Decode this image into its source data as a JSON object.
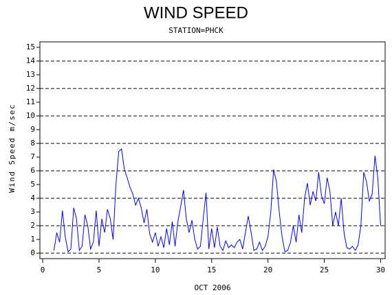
{
  "chart_data": {
    "type": "line",
    "title": "WIND SPEED",
    "subtitle": "STATION=PHCK",
    "x_label": "OCT 2006",
    "y_label": "Wind Speed m/sec",
    "xlim": [
      -0.25,
      30.4
    ],
    "ylim": [
      -0.4,
      15.4
    ],
    "xticks": [
      0,
      5,
      10,
      15,
      20,
      25,
      30
    ],
    "yticks": [
      0,
      1,
      2,
      3,
      4,
      5,
      6,
      7,
      8,
      9,
      10,
      11,
      12,
      13,
      14,
      15
    ],
    "grid_lines": [
      0,
      2,
      4,
      6,
      8,
      10,
      12,
      14
    ],
    "series": [
      {
        "name": "Wind Speed",
        "color": "#0000ff",
        "x": [
          1.0,
          1.25,
          1.5,
          1.75,
          2.0,
          2.25,
          2.5,
          2.75,
          3.0,
          3.25,
          3.5,
          3.75,
          4.0,
          4.25,
          4.5,
          4.75,
          5.0,
          5.25,
          5.5,
          5.75,
          6.0,
          6.25,
          6.5,
          6.75,
          7.0,
          7.25,
          7.5,
          7.75,
          8.0,
          8.25,
          8.5,
          8.75,
          9.0,
          9.25,
          9.5,
          9.75,
          10.0,
          10.25,
          10.5,
          10.75,
          11.0,
          11.25,
          11.5,
          11.75,
          12.0,
          12.25,
          12.5,
          12.75,
          13.0,
          13.25,
          13.5,
          13.75,
          14.0,
          14.25,
          14.5,
          14.75,
          15.0,
          15.25,
          15.5,
          15.75,
          16.0,
          16.25,
          16.5,
          16.75,
          17.0,
          17.25,
          17.5,
          17.75,
          18.0,
          18.25,
          18.5,
          18.75,
          19.0,
          19.25,
          19.5,
          19.75,
          20.0,
          20.25,
          20.5,
          20.75,
          21.0,
          21.25,
          21.5,
          21.75,
          22.0,
          22.25,
          22.5,
          22.75,
          23.0,
          23.25,
          23.5,
          23.75,
          24.0,
          24.25,
          24.5,
          24.75,
          25.0,
          25.25,
          25.5,
          25.75,
          26.0,
          26.25,
          26.5,
          26.75,
          27.0,
          27.25,
          27.5,
          27.75,
          28.0,
          28.25,
          28.5,
          28.75,
          29.0,
          29.25,
          29.5,
          29.75,
          30.0
        ],
        "values": [
          0.2,
          1.5,
          0.8,
          3.1,
          1.2,
          0.1,
          0.3,
          3.3,
          2.5,
          0.2,
          0.5,
          2.8,
          2.0,
          0.3,
          0.8,
          3.1,
          0.5,
          2.5,
          1.5,
          3.2,
          2.5,
          1.0,
          5.0,
          7.4,
          7.6,
          6.1,
          5.5,
          4.8,
          4.3,
          3.5,
          4.0,
          3.3,
          2.2,
          3.2,
          1.4,
          0.8,
          1.5,
          0.5,
          1.2,
          0.4,
          1.8,
          0.6,
          2.3,
          0.5,
          2.3,
          3.4,
          4.6,
          2.5,
          1.5,
          2.4,
          1.0,
          0.3,
          0.5,
          2.5,
          4.4,
          0.3,
          1.8,
          0.4,
          1.9,
          0.5,
          0.2,
          0.9,
          0.4,
          0.6,
          0.4,
          0.8,
          1.0,
          0.3,
          1.5,
          2.7,
          1.5,
          0.2,
          0.3,
          0.8,
          0.2,
          0.5,
          1.2,
          3.0,
          6.1,
          5.2,
          3.0,
          1.2,
          0.1,
          0.2,
          0.8,
          2.0,
          0.8,
          2.8,
          1.5,
          4.0,
          5.1,
          3.5,
          4.5,
          3.8,
          5.9,
          4.2,
          3.6,
          5.5,
          4.5,
          2.0,
          3.0,
          2.0,
          4.0,
          1.5,
          0.4,
          0.3,
          0.5,
          0.2,
          0.6,
          2.0,
          5.9,
          5.2,
          3.8,
          4.3,
          7.1,
          5.5,
          2.0
        ]
      }
    ]
  }
}
